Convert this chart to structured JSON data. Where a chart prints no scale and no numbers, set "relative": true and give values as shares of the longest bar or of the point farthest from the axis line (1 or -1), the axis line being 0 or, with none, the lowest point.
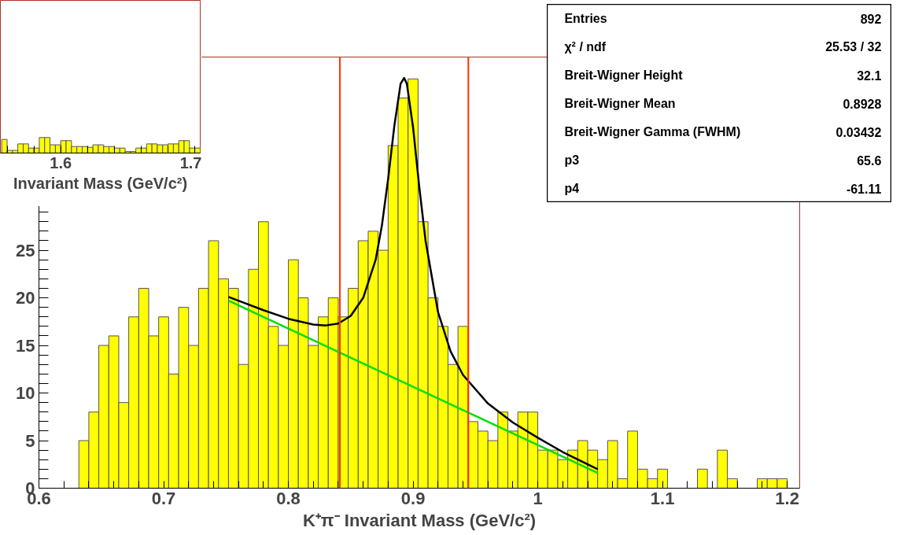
{
  "chart_data": [
    {
      "type": "histogram",
      "xlabel": "K⁺π⁻ Invariant Mass (GeV/c²)",
      "bins": [
        0.6,
        0.608,
        0.616,
        0.624,
        0.632,
        0.64,
        0.648,
        0.656,
        0.664,
        0.672,
        0.68,
        0.688,
        0.696,
        0.704,
        0.712,
        0.72,
        0.728,
        0.736,
        0.744,
        0.752,
        0.76,
        0.768,
        0.776,
        0.784,
        0.792,
        0.8,
        0.808,
        0.816,
        0.824,
        0.832,
        0.84,
        0.848,
        0.856,
        0.864,
        0.872,
        0.88,
        0.888,
        0.896,
        0.904,
        0.912,
        0.92,
        0.928,
        0.936,
        0.944,
        0.952,
        0.96,
        0.968,
        0.976,
        0.984,
        0.992,
        1.0,
        1.008,
        1.016,
        1.024,
        1.032,
        1.04,
        1.048,
        1.056,
        1.064,
        1.072,
        1.08,
        1.088,
        1.096,
        1.104,
        1.112,
        1.12,
        1.128,
        1.136,
        1.144,
        1.152,
        1.16,
        1.168,
        1.176,
        1.184,
        1.192,
        1.2
      ],
      "series": [
        {
          "type": "histogram",
          "color": "#ffff00",
          "values": [
            0,
            0,
            0,
            0,
            5,
            8,
            15,
            16,
            9,
            18,
            21,
            16,
            18,
            12,
            19,
            15,
            21,
            26,
            22,
            21,
            13,
            23,
            28,
            17,
            15,
            24,
            20,
            15,
            18,
            20,
            18,
            21,
            26,
            27,
            25,
            36,
            41,
            43,
            28,
            20,
            17,
            13,
            17,
            7,
            6,
            5,
            8,
            6,
            8,
            8,
            4,
            4,
            3,
            4,
            5,
            4,
            3,
            5,
            1,
            6,
            2,
            1,
            2,
            0,
            0,
            0,
            2,
            0,
            4,
            1,
            0,
            0,
            1,
            1,
            1
          ]
        },
        {
          "type": "line",
          "color": "#000000",
          "x": [
            0.752,
            0.78,
            0.8,
            0.82,
            0.83,
            0.84,
            0.85,
            0.86,
            0.87,
            0.875,
            0.88,
            0.885,
            0.89,
            0.8928,
            0.895,
            0.9,
            0.905,
            0.91,
            0.92,
            0.93,
            0.94,
            0.96,
            0.98,
            1.0,
            1.02,
            1.048
          ],
          "values": [
            20.1,
            18.7,
            17.8,
            17.2,
            17.1,
            17.3,
            18.1,
            20.0,
            24.0,
            27.6,
            32.5,
            38.1,
            42.5,
            43.1,
            42.5,
            37.9,
            31.6,
            26.0,
            18.5,
            14.4,
            11.9,
            8.9,
            6.9,
            5.3,
            3.8,
            2.0
          ]
        },
        {
          "type": "line",
          "color": "#00e000",
          "x": [
            0.752,
            1.048
          ],
          "values": [
            19.7,
            1.6
          ]
        }
      ],
      "xlim": [
        0.6,
        1.21
      ],
      "ylim": [
        0,
        45.3
      ],
      "xticks": [
        0.6,
        {
          "value": 0.62,
          "label": null
        },
        {
          "value": 0.64,
          "label": null
        },
        {
          "value": 0.66,
          "label": null
        },
        {
          "value": 0.68,
          "label": null
        },
        0.7,
        {
          "value": 0.72,
          "label": null
        },
        {
          "value": 0.74,
          "label": null
        },
        {
          "value": 0.76,
          "label": null
        },
        {
          "value": 0.78,
          "label": null
        },
        0.8,
        {
          "value": 0.82,
          "label": null
        },
        {
          "value": 0.84,
          "label": null
        },
        {
          "value": 0.86,
          "label": null
        },
        {
          "value": 0.88,
          "label": null
        },
        0.9,
        {
          "value": 0.92,
          "label": null
        },
        {
          "value": 0.94,
          "label": null
        },
        {
          "value": 0.96,
          "label": null
        },
        {
          "value": 0.98,
          "label": null
        },
        1,
        {
          "value": 1.02,
          "label": null
        },
        {
          "value": 1.04,
          "label": null
        },
        {
          "value": 1.06,
          "label": null
        },
        {
          "value": 1.08,
          "label": null
        },
        1.1,
        {
          "value": 1.12,
          "label": null
        },
        {
          "value": 1.14,
          "label": null
        },
        {
          "value": 1.16,
          "label": null
        },
        {
          "value": 1.18,
          "label": null
        },
        1.2
      ],
      "yticks": [
        0,
        {
          "value": 1,
          "label": null
        },
        {
          "value": 2,
          "label": null
        },
        {
          "value": 3,
          "label": null
        },
        {
          "value": 4,
          "label": null
        },
        5,
        {
          "value": 6,
          "label": null
        },
        {
          "value": 7,
          "label": null
        },
        {
          "value": 8,
          "label": null
        },
        {
          "value": 9,
          "label": null
        },
        10,
        {
          "value": 11,
          "label": null
        },
        {
          "value": 12,
          "label": null
        },
        {
          "value": 13,
          "label": null
        },
        {
          "value": 14,
          "label": null
        },
        15,
        {
          "value": 16,
          "label": null
        },
        {
          "value": 17,
          "label": null
        },
        {
          "value": 18,
          "label": null
        },
        {
          "value": 19,
          "label": null
        },
        20,
        {
          "value": 21,
          "label": null
        },
        {
          "value": 22,
          "label": null
        },
        {
          "value": 23,
          "label": null
        },
        {
          "value": 24,
          "label": null
        },
        25,
        {
          "value": 26,
          "label": null
        },
        {
          "value": 27,
          "label": null
        },
        {
          "value": 28,
          "label": null
        },
        {
          "value": 29,
          "label": null
        }
      ],
      "ref_lines": [
        {
          "axis": "x",
          "value": 0.8413,
          "color": "#ff3300"
        },
        {
          "axis": "x",
          "value": 0.9443,
          "color": "#ff3300"
        }
      ],
      "annotations": [
        "Entries",
        "892",
        "χ² / ndf",
        "25.53 / 32",
        "Breit-Wigner Height",
        "32.1",
        "Breit-Wigner Mean",
        "0.8928",
        "Breit-Wigner Gamma (FWHM)",
        "0.03432",
        "p3",
        "65.6",
        "p4",
        "-61.11"
      ]
    },
    {
      "type": "bar",
      "relative": true,
      "xlabel": "Invariant Mass (GeV/c²)",
      "color": "#ffff00",
      "x": [
        1.558,
        1.562,
        1.566,
        1.57,
        1.574,
        1.578,
        1.582,
        1.586,
        1.59,
        1.594,
        1.598,
        1.602,
        1.606,
        1.61,
        1.614,
        1.618,
        1.622,
        1.626,
        1.63,
        1.634,
        1.638,
        1.642,
        1.646,
        1.65,
        1.654,
        1.658,
        1.662,
        1.666,
        1.67,
        1.674,
        1.678,
        1.682,
        1.686,
        1.69,
        1.694,
        1.698,
        1.702
      ],
      "values": [
        0.88,
        0.17,
        0.17,
        0.59,
        0.59,
        0.32,
        0.32,
        1,
        1,
        0.53,
        0.53,
        0.8,
        0.8,
        0.42,
        0.42,
        0.42,
        0.37,
        0.53,
        0.53,
        0.42,
        0.42,
        0.32,
        0.32,
        0.1,
        0.1,
        0.32,
        0.32,
        0.59,
        0.59,
        0.53,
        0.53,
        0.59,
        0.59,
        0.8,
        0.8,
        0.32,
        0.32
      ],
      "xlim": [
        1.555,
        1.704
      ],
      "xticks": [
        {
          "value": 1.56,
          "label": null
        },
        {
          "value": 1.58,
          "label": null
        },
        1.6,
        {
          "value": 1.62,
          "label": null
        },
        {
          "value": 1.64,
          "label": null
        },
        {
          "value": 1.66,
          "label": null
        },
        {
          "value": 1.68,
          "label": null
        },
        1.7
      ],
      "tick_labels": "x"
    }
  ]
}
